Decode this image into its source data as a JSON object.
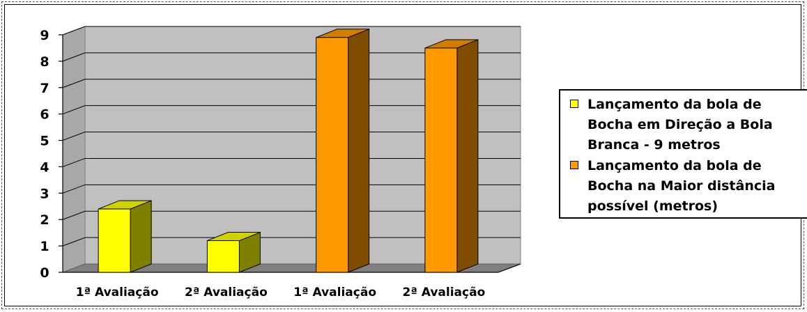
{
  "chart_data": {
    "type": "bar",
    "categories": [
      "1ª Avaliação",
      "2ª Avaliação",
      "1ª Avaliação",
      "2ª Avaliação"
    ],
    "series": [
      {
        "name": "Lançamento da bola de Bocha em Direção a Bola Branca - 9 metros",
        "values": [
          2.4,
          1.2,
          null,
          null
        ],
        "color": "#FFFF00"
      },
      {
        "name": "Lançamento da bola de Bocha na Maior distância possível (metros)",
        "values": [
          null,
          null,
          8.9,
          8.5
        ],
        "color": "#FF9900"
      }
    ],
    "yticks": [
      0,
      1,
      2,
      3,
      4,
      5,
      6,
      7,
      8,
      9
    ],
    "ylim": [
      0,
      9
    ],
    "grid": true,
    "style": "3d-column",
    "legend_position": "right",
    "plot_background": "#C0C0C0"
  }
}
